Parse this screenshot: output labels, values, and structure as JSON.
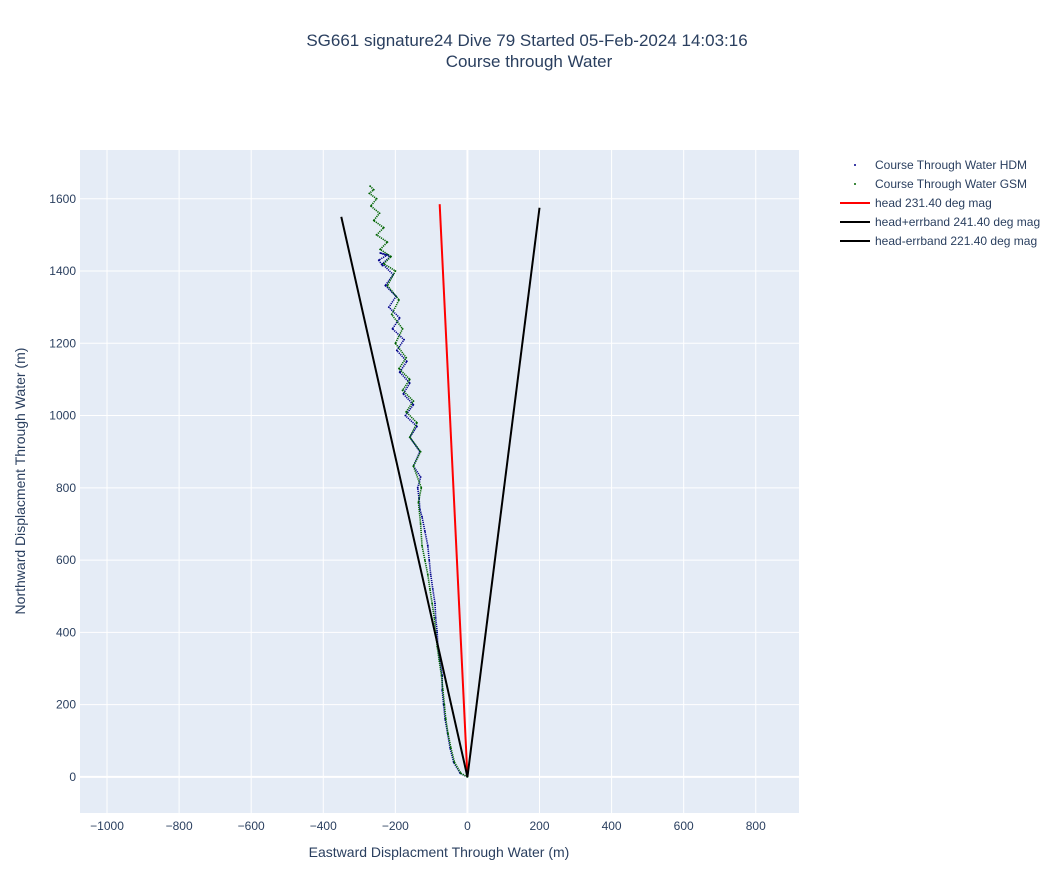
{
  "chart_data": {
    "type": "line",
    "title": "SG661 signature24 Dive 79 Started 05-Feb-2024 14:03:16",
    "subtitle": "Course through Water",
    "xlabel": "Eastward Displacment Through Water (m)",
    "ylabel": "Northward Displacment Through Water (m)",
    "xlim": [
      -1075,
      920
    ],
    "ylim": [
      -100,
      1735
    ],
    "xticks": [
      -1000,
      -800,
      -600,
      -400,
      -200,
      0,
      200,
      400,
      600,
      800
    ],
    "xtick_labels": [
      "−1000",
      "−800",
      "−600",
      "−400",
      "−200",
      "0",
      "200",
      "400",
      "600",
      "800"
    ],
    "yticks": [
      0,
      200,
      400,
      600,
      800,
      1000,
      1200,
      1400,
      1600
    ],
    "ytick_labels": [
      "0",
      "200",
      "400",
      "600",
      "800",
      "1000",
      "1200",
      "1400",
      "1600"
    ],
    "grid": true,
    "legend_position": "right",
    "series": [
      {
        "name": "Course Through Water HDM",
        "mode": "markers",
        "color": "#00008b",
        "x": [
          0,
          -20,
          -38,
          -48,
          -55,
          -62,
          -66,
          -70,
          -70,
          -76,
          -82,
          -84,
          -88,
          -90,
          -96,
          -102,
          -106,
          -110,
          -118,
          -126,
          -132,
          -134,
          -138,
          -130,
          -150,
          -132,
          -160,
          -140,
          -172,
          -150,
          -178,
          -160,
          -188,
          -168,
          -196,
          -176,
          -208,
          -188,
          -218,
          -198,
          -228,
          -206,
          -236,
          -214,
          -242,
          -222,
          -246,
          -236
        ],
        "y": [
          0,
          10,
          40,
          80,
          120,
          160,
          200,
          240,
          280,
          320,
          360,
          400,
          440,
          480,
          520,
          560,
          600,
          640,
          680,
          720,
          740,
          770,
          800,
          830,
          860,
          900,
          940,
          970,
          1000,
          1030,
          1060,
          1090,
          1120,
          1150,
          1180,
          1210,
          1240,
          1270,
          1300,
          1330,
          1360,
          1390,
          1420,
          1440,
          1450,
          1445,
          1430,
          1415
        ]
      },
      {
        "name": "Course Through Water GSM",
        "mode": "markers",
        "color": "#006400",
        "x": [
          0,
          -18,
          -36,
          -46,
          -54,
          -60,
          -64,
          -68,
          -72,
          -78,
          -84,
          -88,
          -92,
          -98,
          -104,
          -110,
          -118,
          -126,
          -130,
          -136,
          -128,
          -150,
          -130,
          -160,
          -140,
          -170,
          -150,
          -180,
          -160,
          -190,
          -170,
          -200,
          -180,
          -210,
          -190,
          -222,
          -200,
          -232,
          -212,
          -242,
          -222,
          -252,
          -232,
          -260,
          -244,
          -268,
          -252,
          -272,
          -260,
          -270
        ],
        "y": [
          0,
          10,
          40,
          80,
          120,
          160,
          200,
          240,
          280,
          320,
          360,
          400,
          440,
          480,
          520,
          560,
          600,
          640,
          700,
          760,
          800,
          860,
          900,
          940,
          980,
          1010,
          1040,
          1070,
          1100,
          1130,
          1160,
          1200,
          1240,
          1280,
          1320,
          1360,
          1400,
          1420,
          1440,
          1460,
          1480,
          1500,
          1520,
          1540,
          1560,
          1580,
          1600,
          1615,
          1625,
          1635
        ]
      },
      {
        "name": "head 231.40 deg mag",
        "mode": "lines",
        "color": "#ff0000",
        "x": [
          0,
          -77
        ],
        "y": [
          0,
          1585
        ]
      },
      {
        "name": "head+errband 241.40 deg mag",
        "mode": "lines",
        "color": "#000000",
        "x": [
          0,
          -350
        ],
        "y": [
          0,
          1550
        ]
      },
      {
        "name": "head-errband 221.40 deg mag",
        "mode": "lines",
        "color": "#000000",
        "x": [
          0,
          200
        ],
        "y": [
          0,
          1575
        ]
      }
    ]
  }
}
